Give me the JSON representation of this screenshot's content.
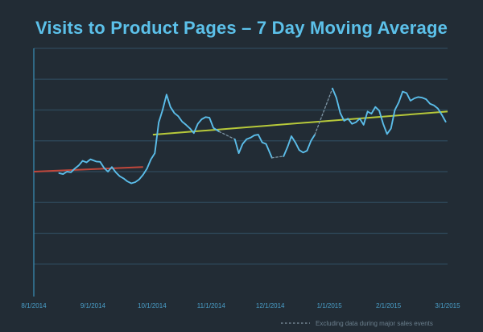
{
  "colors": {
    "background": "#222c35",
    "title": "#5cc1ea",
    "axis": "#3a8fb8",
    "grid": "#2f4a5c",
    "series": "#5bbde9",
    "trend_before": "#c0473b",
    "trend_after": "#b7c93a",
    "tick_text": "#4a9fc9",
    "legend_text": "#6b7f8d"
  },
  "chart_data": {
    "type": "line",
    "title": "Visits to Product Pages – 7 Day Moving Average",
    "xlabel": "",
    "ylabel": "",
    "x_ticks": [
      "8/1/2014",
      "9/1/2014",
      "10/1/2014",
      "11/1/2014",
      "12/1/2014",
      "1/1/2015",
      "2/1/2015",
      "3/1/2015"
    ],
    "x_range": [
      "2014-08-01",
      "2015-03-01"
    ],
    "y_ticks": [],
    "y_range": [
      0,
      8
    ],
    "grid": true,
    "legend_position": "bottom-right",
    "series": [
      {
        "segment": "solid",
        "points": [
          [
            "2014-08-14",
            3.95
          ],
          [
            "2014-08-16",
            3.92
          ],
          [
            "2014-08-18",
            4.0
          ],
          [
            "2014-08-20",
            3.98
          ],
          [
            "2014-08-22",
            4.1
          ],
          [
            "2014-08-24",
            4.2
          ],
          [
            "2014-08-26",
            4.35
          ],
          [
            "2014-08-28",
            4.3
          ],
          [
            "2014-08-30",
            4.4
          ],
          [
            "2014-09-02",
            4.33
          ],
          [
            "2014-09-04",
            4.32
          ],
          [
            "2014-09-06",
            4.12
          ],
          [
            "2014-09-08",
            4.0
          ],
          [
            "2014-09-10",
            4.15
          ],
          [
            "2014-09-12",
            3.98
          ],
          [
            "2014-09-14",
            3.85
          ],
          [
            "2014-09-16",
            3.78
          ],
          [
            "2014-09-18",
            3.68
          ],
          [
            "2014-09-20",
            3.62
          ],
          [
            "2014-09-22",
            3.66
          ],
          [
            "2014-09-24",
            3.75
          ],
          [
            "2014-09-26",
            3.9
          ],
          [
            "2014-09-28",
            4.1
          ],
          [
            "2014-09-30",
            4.4
          ],
          [
            "2014-10-02",
            4.6
          ],
          [
            "2014-10-04",
            5.6
          ],
          [
            "2014-10-06",
            6.0
          ],
          [
            "2014-10-08",
            6.5
          ],
          [
            "2014-10-10",
            6.1
          ],
          [
            "2014-10-12",
            5.9
          ],
          [
            "2014-10-14",
            5.8
          ],
          [
            "2014-10-16",
            5.62
          ],
          [
            "2014-10-18",
            5.52
          ],
          [
            "2014-10-20",
            5.4
          ],
          [
            "2014-10-22",
            5.25
          ],
          [
            "2014-10-24",
            5.55
          ],
          [
            "2014-10-26",
            5.7
          ],
          [
            "2014-10-28",
            5.77
          ],
          [
            "2014-10-30",
            5.75
          ],
          [
            "2014-11-01",
            5.42
          ],
          [
            "2014-11-04",
            5.3
          ]
        ]
      },
      {
        "segment": "dashed",
        "points": [
          [
            "2014-11-04",
            5.3
          ],
          [
            "2014-11-12",
            5.05
          ]
        ]
      },
      {
        "segment": "solid",
        "points": [
          [
            "2014-11-12",
            5.05
          ],
          [
            "2014-11-14",
            4.6
          ],
          [
            "2014-11-16",
            4.9
          ],
          [
            "2014-11-18",
            5.05
          ],
          [
            "2014-11-20",
            5.1
          ],
          [
            "2014-11-22",
            5.18
          ],
          [
            "2014-11-24",
            5.2
          ],
          [
            "2014-11-26",
            4.95
          ],
          [
            "2014-11-28",
            4.9
          ],
          [
            "2014-12-01",
            4.45
          ]
        ]
      },
      {
        "segment": "dashed",
        "points": [
          [
            "2014-12-01",
            4.45
          ],
          [
            "2014-12-07",
            4.5
          ]
        ]
      },
      {
        "segment": "solid",
        "points": [
          [
            "2014-12-07",
            4.5
          ],
          [
            "2014-12-09",
            4.8
          ],
          [
            "2014-12-11",
            5.15
          ],
          [
            "2014-12-13",
            4.95
          ],
          [
            "2014-12-15",
            4.7
          ],
          [
            "2014-12-17",
            4.62
          ],
          [
            "2014-12-19",
            4.68
          ],
          [
            "2014-12-21",
            5.0
          ],
          [
            "2014-12-23",
            5.2
          ]
        ]
      },
      {
        "segment": "dashed",
        "points": [
          [
            "2014-12-23",
            5.2
          ],
          [
            "2015-01-01",
            6.7
          ]
        ]
      },
      {
        "segment": "solid",
        "points": [
          [
            "2015-01-01",
            6.7
          ],
          [
            "2015-01-03",
            6.4
          ],
          [
            "2015-01-05",
            5.9
          ],
          [
            "2015-01-07",
            5.65
          ],
          [
            "2015-01-09",
            5.72
          ],
          [
            "2015-01-11",
            5.55
          ],
          [
            "2015-01-13",
            5.6
          ],
          [
            "2015-01-15",
            5.72
          ],
          [
            "2015-01-17",
            5.52
          ],
          [
            "2015-01-19",
            5.95
          ],
          [
            "2015-01-21",
            5.88
          ],
          [
            "2015-01-23",
            6.1
          ],
          [
            "2015-01-25",
            5.98
          ],
          [
            "2015-01-27",
            5.55
          ],
          [
            "2015-01-29",
            5.22
          ],
          [
            "2015-01-31",
            5.4
          ],
          [
            "2015-02-02",
            6.0
          ],
          [
            "2015-02-04",
            6.25
          ],
          [
            "2015-02-06",
            6.6
          ],
          [
            "2015-02-08",
            6.55
          ],
          [
            "2015-02-10",
            6.3
          ],
          [
            "2015-02-12",
            6.38
          ],
          [
            "2015-02-14",
            6.42
          ],
          [
            "2015-02-16",
            6.4
          ],
          [
            "2015-02-18",
            6.35
          ],
          [
            "2015-02-20",
            6.2
          ],
          [
            "2015-02-22",
            6.15
          ],
          [
            "2015-02-24",
            6.05
          ],
          [
            "2015-02-26",
            5.85
          ],
          [
            "2015-02-28",
            5.62
          ]
        ]
      }
    ],
    "trend_lines": [
      {
        "segment": "before",
        "points": [
          [
            "2014-08-01",
            4.0
          ],
          [
            "2014-09-26",
            4.15
          ]
        ]
      },
      {
        "segment": "after",
        "points": [
          [
            "2014-10-01",
            5.2
          ],
          [
            "2015-03-01",
            5.95
          ]
        ]
      }
    ],
    "legend": {
      "dashed_label": "Excluding data during major sales events"
    }
  }
}
